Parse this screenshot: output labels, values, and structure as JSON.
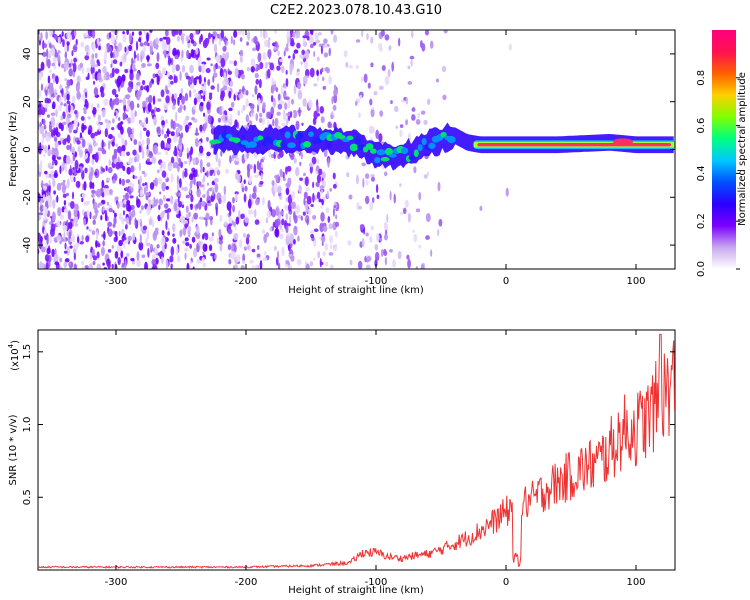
{
  "title": "C2E2.2023.078.10.43.G10",
  "chart_data": [
    {
      "type": "heatmap",
      "xlabel": "Height of straight line (km)",
      "ylabel": "Frequency (Hz)",
      "xlim": [
        -360,
        130
      ],
      "ylim": [
        -50,
        50
      ],
      "xticks": [
        -300,
        -200,
        -100,
        0,
        100
      ],
      "yticks": [
        -40,
        -20,
        0,
        20,
        40
      ],
      "colorbar": {
        "label": "Normalized spectral amplitude",
        "range": [
          0,
          1
        ],
        "ticks": [
          0.0,
          0.2,
          0.4,
          0.6,
          0.8
        ],
        "colors": [
          "#ffffff",
          "#c8a8f0",
          "#7a00ff",
          "#2a00ff",
          "#0050ff",
          "#00c8ff",
          "#00ff80",
          "#80ff00",
          "#ffd000",
          "#ff6000",
          "#ff1050",
          "#ff0080"
        ]
      },
      "signal_track": [
        {
          "x": -225,
          "f": 4
        },
        {
          "x": -200,
          "f": 4
        },
        {
          "x": -170,
          "f": 4
        },
        {
          "x": -150,
          "f": 4
        },
        {
          "x": -130,
          "f": 4
        },
        {
          "x": -110,
          "f": 1
        },
        {
          "x": -100,
          "f": -2
        },
        {
          "x": -90,
          "f": -3
        },
        {
          "x": -80,
          "f": -2
        },
        {
          "x": -70,
          "f": -1
        },
        {
          "x": -60,
          "f": 2
        },
        {
          "x": -50,
          "f": 4
        },
        {
          "x": -40,
          "f": 6
        },
        {
          "x": -30,
          "f": 3
        },
        {
          "x": -20,
          "f": 2
        },
        {
          "x": 0,
          "f": 2
        },
        {
          "x": 40,
          "f": 2
        },
        {
          "x": 80,
          "f": 3
        },
        {
          "x": 100,
          "f": 2
        },
        {
          "x": 130,
          "f": 2
        }
      ]
    },
    {
      "type": "line",
      "xlabel": "Height of straight line (km)",
      "ylabel": "SNR (10 * v/v)",
      "y_multiplier": "(x10",
      "y_multiplier_exp": "4",
      "xlim": [
        -360,
        130
      ],
      "ylim": [
        0,
        1.65
      ],
      "xticks": [
        -300,
        -200,
        -100,
        0,
        100
      ],
      "yticks": [
        0.5,
        1.0,
        1.5
      ],
      "series": [
        {
          "color": "#ee3333",
          "x": [
            -360,
            -300,
            -250,
            -200,
            -150,
            -120,
            -110,
            -100,
            -90,
            -80,
            -70,
            -60,
            -50,
            -40,
            -30,
            -20,
            -10,
            0,
            10,
            20,
            30,
            40,
            50,
            60,
            70,
            80,
            90,
            100,
            110,
            120,
            130
          ],
          "y": [
            0.02,
            0.02,
            0.02,
            0.02,
            0.03,
            0.05,
            0.12,
            0.12,
            0.09,
            0.08,
            0.1,
            0.11,
            0.14,
            0.18,
            0.22,
            0.27,
            0.33,
            0.4,
            0.45,
            0.48,
            0.55,
            0.6,
            0.65,
            0.7,
            0.73,
            0.82,
            0.95,
            0.97,
            1.05,
            1.2,
            1.3
          ]
        }
      ]
    }
  ]
}
